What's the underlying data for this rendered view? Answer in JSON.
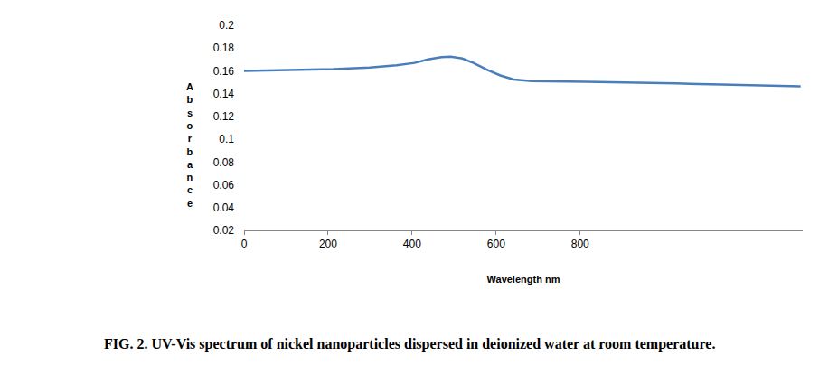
{
  "chart_data": {
    "type": "line",
    "title": "FIG. 2. UV-Vis spectrum of nickel nanoparticles dispersed in deionized water at room temperature.",
    "x_label": "Wavelength nm",
    "y_label": "Absorbance",
    "x": [
      0,
      105,
      213,
      299,
      363,
      406,
      438,
      470,
      492,
      518,
      546,
      578,
      610,
      642,
      685,
      814,
      921,
      1029,
      1136,
      1244,
      1325
    ],
    "values": [
      0.16,
      0.161,
      0.1615,
      0.163,
      0.165,
      0.167,
      0.17,
      0.172,
      0.1725,
      0.171,
      0.167,
      0.161,
      0.156,
      0.1525,
      0.151,
      0.1505,
      0.15,
      0.149,
      0.148,
      0.147,
      0.1465
    ],
    "color": "#4a7ebb",
    "xlim": [
      0,
      1330
    ],
    "ylim": [
      0.02,
      0.2
    ],
    "xticks": [
      0,
      200,
      400,
      600,
      800
    ],
    "yticks": [
      0.02,
      0.04,
      0.06,
      0.08,
      0.1,
      0.12,
      0.14,
      0.16,
      0.18,
      0.2
    ],
    "grid": false
  }
}
